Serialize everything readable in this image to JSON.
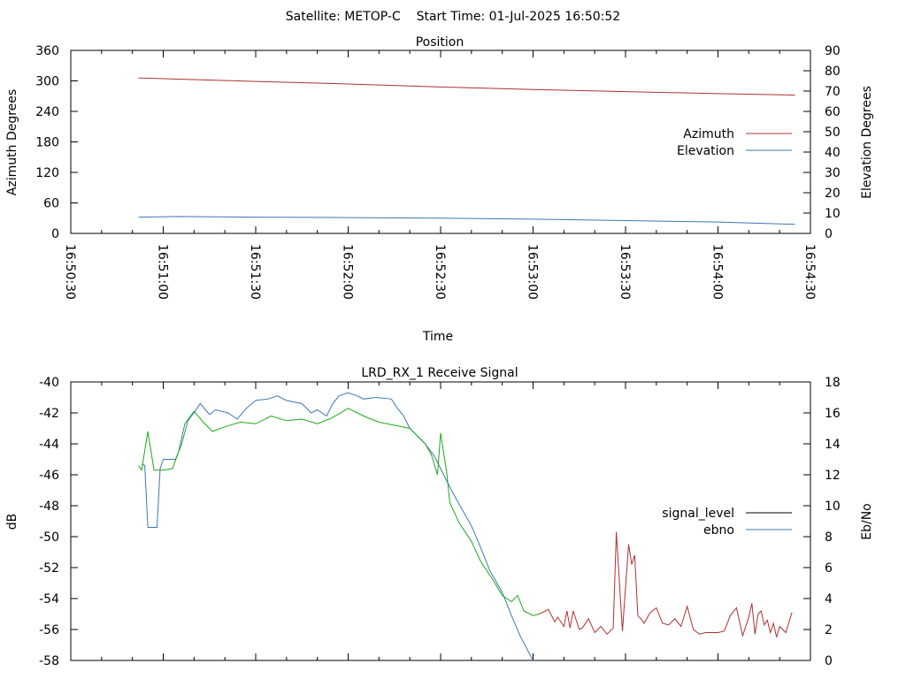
{
  "header": {
    "title": "Satellite: METOP-C    Start Time: 01-Jul-2025 16:50:52"
  },
  "chart_data": [
    {
      "type": "line",
      "title": "Position",
      "xlabel": "Time",
      "ylabel": "Azimuth Degrees",
      "y2label": "Elevation Degrees",
      "xticks": [
        "16:50:30",
        "16:51:00",
        "16:51:30",
        "16:52:00",
        "16:52:30",
        "16:53:00",
        "16:53:30",
        "16:54:00",
        "16:54:30"
      ],
      "yticks": [
        "0",
        "60",
        "120",
        "180",
        "240",
        "300",
        "360"
      ],
      "y2ticks": [
        "0",
        "10",
        "20",
        "30",
        "40",
        "50",
        "60",
        "70",
        "80",
        "90"
      ],
      "ylim": [
        0,
        360
      ],
      "y2lim": [
        0,
        90
      ],
      "legend_position": "right",
      "series": [
        {
          "name": "Azimuth",
          "axis": "left",
          "color": "#b03030",
          "x": [
            "16:50:52",
            "16:51:30",
            "16:52:00",
            "16:52:30",
            "16:53:00",
            "16:53:30",
            "16:54:00",
            "16:54:25"
          ],
          "values": [
            306,
            299,
            294,
            288,
            283,
            279,
            275,
            272
          ]
        },
        {
          "name": "Elevation",
          "axis": "right",
          "color": "#3b78b4",
          "x": [
            "16:50:52",
            "16:51:05",
            "16:51:30",
            "16:52:00",
            "16:52:30",
            "16:53:00",
            "16:53:30",
            "16:54:00",
            "16:54:25"
          ],
          "values": [
            8,
            8.3,
            8,
            7.8,
            7.5,
            7,
            6.3,
            5.6,
            4.5
          ]
        }
      ]
    },
    {
      "type": "line",
      "title": "LRD_RX_1 Receive Signal",
      "ylabel": "dB",
      "y2label": "Eb/No",
      "yticks": [
        "-40",
        "-42",
        "-44",
        "-46",
        "-48",
        "-50",
        "-52",
        "-54",
        "-56",
        "-58"
      ],
      "y2ticks": [
        "0",
        "2",
        "4",
        "6",
        "8",
        "10",
        "12",
        "14",
        "16",
        "18"
      ],
      "ylim": [
        -58,
        -40
      ],
      "y2lim": [
        0,
        18
      ],
      "legend_position": "right",
      "series": [
        {
          "name": "signal_level",
          "axis": "left",
          "color": "#000000",
          "x": [],
          "values": []
        },
        {
          "name": "ebno",
          "axis": "right",
          "color": "#3b78b4",
          "x": [
            "16:50:53",
            "16:50:54",
            "16:50:55",
            "16:50:56",
            "16:50:58",
            "16:50:59",
            "16:51:00",
            "16:51:04",
            "16:51:06",
            "16:51:08",
            "16:51:11",
            "16:51:12",
            "16:51:15",
            "16:51:17",
            "16:51:21",
            "16:51:24",
            "16:51:27",
            "16:51:30",
            "16:51:34",
            "16:51:37",
            "16:51:40",
            "16:51:45",
            "16:51:48",
            "16:51:50",
            "16:51:53",
            "16:51:55",
            "16:51:57",
            "16:52:00",
            "16:52:03",
            "16:52:05",
            "16:52:09",
            "16:52:14",
            "16:52:16",
            "16:52:18",
            "16:52:20",
            "16:52:25",
            "16:52:28",
            "16:52:30",
            "16:52:33",
            "16:52:36",
            "16:52:40",
            "16:52:43",
            "16:52:46",
            "16:52:50",
            "16:52:53",
            "16:52:56",
            "16:53:00"
          ],
          "values": [
            12.7,
            12.6,
            8.6,
            8.6,
            8.6,
            12.4,
            13.0,
            13.0,
            14.0,
            15.5,
            16.3,
            16.6,
            15.9,
            16.2,
            16.0,
            15.6,
            16.3,
            16.8,
            16.9,
            17.1,
            16.8,
            16.6,
            16.0,
            16.2,
            15.8,
            16.6,
            17.1,
            17.3,
            17.1,
            16.9,
            17.0,
            16.9,
            16.3,
            15.8,
            15.0,
            14.0,
            13.2,
            12.4,
            11.2,
            10.1,
            8.7,
            7.3,
            5.8,
            4.4,
            2.9,
            1.5,
            0.0
          ]
        },
        {
          "name": "",
          "axis": "left",
          "color": "#1aaa1a",
          "x": [
            "16:50:52",
            "16:50:53",
            "16:50:55",
            "16:50:57",
            "16:51:00",
            "16:51:03",
            "16:51:05",
            "16:51:07",
            "16:51:10",
            "16:51:13",
            "16:51:16",
            "16:51:20",
            "16:51:25",
            "16:51:30",
            "16:51:35",
            "16:51:40",
            "16:51:45",
            "16:51:50",
            "16:51:55",
            "16:52:00",
            "16:52:05",
            "16:52:10",
            "16:52:15",
            "16:52:20",
            "16:52:25",
            "16:52:27",
            "16:52:29",
            "16:52:30",
            "16:52:32",
            "16:52:33",
            "16:52:36",
            "16:52:40",
            "16:52:43",
            "16:52:47",
            "16:52:50",
            "16:52:53",
            "16:52:55",
            "16:52:57",
            "16:53:00",
            "16:53:02"
          ],
          "values": [
            -45.4,
            -45.7,
            -43.2,
            -45.7,
            -45.7,
            -45.6,
            -44.5,
            -42.7,
            -41.9,
            -42.6,
            -43.2,
            -42.9,
            -42.6,
            -42.7,
            -42.2,
            -42.5,
            -42.4,
            -42.7,
            -42.3,
            -41.7,
            -42.2,
            -42.6,
            -42.8,
            -43.0,
            -44.0,
            -44.7,
            -46.0,
            -43.3,
            -45.9,
            -47.8,
            -49.1,
            -50.3,
            -51.6,
            -52.8,
            -53.8,
            -54.2,
            -53.8,
            -54.8,
            -55.1,
            -55.0
          ]
        },
        {
          "name": "",
          "axis": "left",
          "color": "#b03030",
          "x": [
            "16:53:02",
            "16:53:05",
            "16:53:07",
            "16:53:08",
            "16:53:10",
            "16:53:11",
            "16:53:12",
            "16:53:13",
            "16:53:14",
            "16:53:15",
            "16:53:16",
            "16:53:18",
            "16:53:20",
            "16:53:22",
            "16:53:24",
            "16:53:26",
            "16:53:27",
            "16:53:29",
            "16:53:31",
            "16:53:32",
            "16:53:33",
            "16:53:34",
            "16:53:35",
            "16:53:36",
            "16:53:38",
            "16:53:40",
            "16:53:42",
            "16:53:44",
            "16:53:46",
            "16:53:48",
            "16:53:50",
            "16:53:52",
            "16:53:54",
            "16:53:56",
            "16:53:58",
            "16:54:00",
            "16:54:02",
            "16:54:04",
            "16:54:06",
            "16:54:08",
            "16:54:10",
            "16:54:11",
            "16:54:12",
            "16:54:13",
            "16:54:14",
            "16:54:15",
            "16:54:16",
            "16:54:17",
            "16:54:18",
            "16:54:19",
            "16:54:20",
            "16:54:22",
            "16:54:24"
          ],
          "values": [
            -55.0,
            -54.7,
            -55.5,
            -55.2,
            -55.8,
            -54.8,
            -55.9,
            -54.8,
            -55.4,
            -56.0,
            -55.9,
            -55.3,
            -56.2,
            -55.8,
            -56.3,
            -55.9,
            -49.7,
            -56.1,
            -50.5,
            -51.8,
            -51.2,
            -55.1,
            -55.3,
            -55.6,
            -54.9,
            -54.6,
            -55.6,
            -55.7,
            -55.3,
            -55.8,
            -54.5,
            -56.0,
            -56.3,
            -56.2,
            -56.2,
            -56.2,
            -56.1,
            -55.1,
            -54.6,
            -56.4,
            -55.2,
            -54.3,
            -56.3,
            -55.0,
            -54.8,
            -55.7,
            -55.4,
            -56.2,
            -55.6,
            -56.5,
            -55.8,
            -56.2,
            -54.9
          ]
        }
      ]
    }
  ]
}
